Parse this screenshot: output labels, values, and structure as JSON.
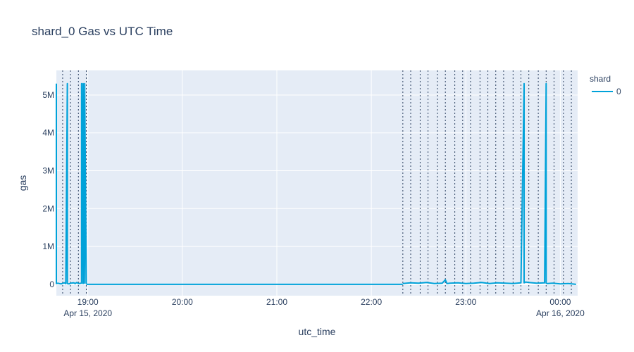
{
  "chart_data": {
    "type": "line",
    "title": "shard_0 Gas vs UTC Time",
    "xlabel": "utc_time",
    "ylabel": "gas",
    "xlim": [
      "2020-04-15 18:40",
      "2020-04-16 00:11"
    ],
    "ylim": [
      -300000,
      5650000
    ],
    "x_ticks": [
      {
        "value": "2020-04-15 19:00",
        "label": "19:00",
        "sublabel": "Apr 15, 2020"
      },
      {
        "value": "2020-04-15 20:00",
        "label": "20:00",
        "sublabel": ""
      },
      {
        "value": "2020-04-15 21:00",
        "label": "21:00",
        "sublabel": ""
      },
      {
        "value": "2020-04-15 22:00",
        "label": "22:00",
        "sublabel": ""
      },
      {
        "value": "2020-04-15 23:00",
        "label": "23:00",
        "sublabel": ""
      },
      {
        "value": "2020-04-16 00:00",
        "label": "00:00",
        "sublabel": "Apr 16, 2020"
      }
    ],
    "y_ticks": [
      {
        "value": 0,
        "label": "0"
      },
      {
        "value": 1000000,
        "label": "1M"
      },
      {
        "value": 2000000,
        "label": "2M"
      },
      {
        "value": 3000000,
        "label": "3M"
      },
      {
        "value": 4000000,
        "label": "4M"
      },
      {
        "value": 5000000,
        "label": "5M"
      }
    ],
    "grid": true,
    "legend": {
      "title": "shard",
      "position": "top-right"
    },
    "series": [
      {
        "name": "0",
        "color": "#00a2d9",
        "segments": [
          {
            "x": [
              "2020-04-15 18:40",
              "2020-04-15 18:40",
              "2020-04-15 18:41",
              "2020-04-15 18:43",
              "2020-04-15 18:45",
              "2020-04-15 18:46",
              "2020-04-15 18:47",
              "2020-04-15 18:47",
              "2020-04-15 18:48",
              "2020-04-15 18:49",
              "2020-04-15 18:51",
              "2020-04-15 18:52",
              "2020-04-15 18:53",
              "2020-04-15 18:54",
              "2020-04-15 18:56",
              "2020-04-15 18:56",
              "2020-04-15 18:57",
              "2020-04-15 18:57",
              "2020-04-15 18:58",
              "2020-04-15 18:58",
              "2020-04-15 18:59",
              "2020-04-15 18:59"
            ],
            "y": [
              5300000,
              20000,
              30000,
              10000,
              40000,
              20000,
              5300000,
              20000,
              10000,
              30000,
              40000,
              20000,
              50000,
              20000,
              30000,
              5300000,
              20000,
              5300000,
              30000,
              5300000,
              10000,
              10000
            ]
          },
          {
            "x": [
              "2020-04-15 18:59",
              "2020-04-15 22:20"
            ],
            "y": [
              0,
              0
            ]
          },
          {
            "x": [
              "2020-04-15 22:20",
              "2020-04-15 22:25",
              "2020-04-15 22:30",
              "2020-04-15 22:35",
              "2020-04-15 22:40",
              "2020-04-15 22:45",
              "2020-04-15 22:47",
              "2020-04-15 22:48",
              "2020-04-15 22:50",
              "2020-04-15 22:55",
              "2020-04-15 23:00",
              "2020-04-15 23:05",
              "2020-04-15 23:10",
              "2020-04-15 23:15",
              "2020-04-15 23:20",
              "2020-04-15 23:25",
              "2020-04-15 23:30",
              "2020-04-15 23:35",
              "2020-04-15 23:37",
              "2020-04-15 23:37",
              "2020-04-15 23:38",
              "2020-04-15 23:40",
              "2020-04-15 23:45",
              "2020-04-15 23:50",
              "2020-04-15 23:51",
              "2020-04-15 23:51",
              "2020-04-15 23:52",
              "2020-04-15 23:55",
              "2020-04-16 00:00",
              "2020-04-16 00:05",
              "2020-04-16 00:10"
            ],
            "y": [
              20000,
              40000,
              30000,
              50000,
              20000,
              30000,
              120000,
              20000,
              30000,
              40000,
              20000,
              30000,
              50000,
              20000,
              40000,
              30000,
              20000,
              40000,
              5300000,
              40000,
              60000,
              50000,
              30000,
              40000,
              5300000,
              30000,
              20000,
              30000,
              10000,
              20000,
              0
            ]
          }
        ]
      }
    ],
    "annotation_vlines": [
      "2020-04-15 18:44",
      "2020-04-15 18:49",
      "2020-04-15 18:54",
      "2020-04-15 18:59",
      "2020-04-15 22:20",
      "2020-04-15 22:25",
      "2020-04-15 22:31",
      "2020-04-15 22:36",
      "2020-04-15 22:42",
      "2020-04-15 22:47",
      "2020-04-15 22:53",
      "2020-04-15 22:58",
      "2020-04-15 23:03",
      "2020-04-15 23:09",
      "2020-04-15 23:14",
      "2020-04-15 23:19",
      "2020-04-15 23:24",
      "2020-04-15 23:30",
      "2020-04-15 23:35",
      "2020-04-15 23:40",
      "2020-04-15 23:46",
      "2020-04-15 23:51",
      "2020-04-15 23:56",
      "2020-04-16 00:02",
      "2020-04-16 00:07"
    ]
  }
}
